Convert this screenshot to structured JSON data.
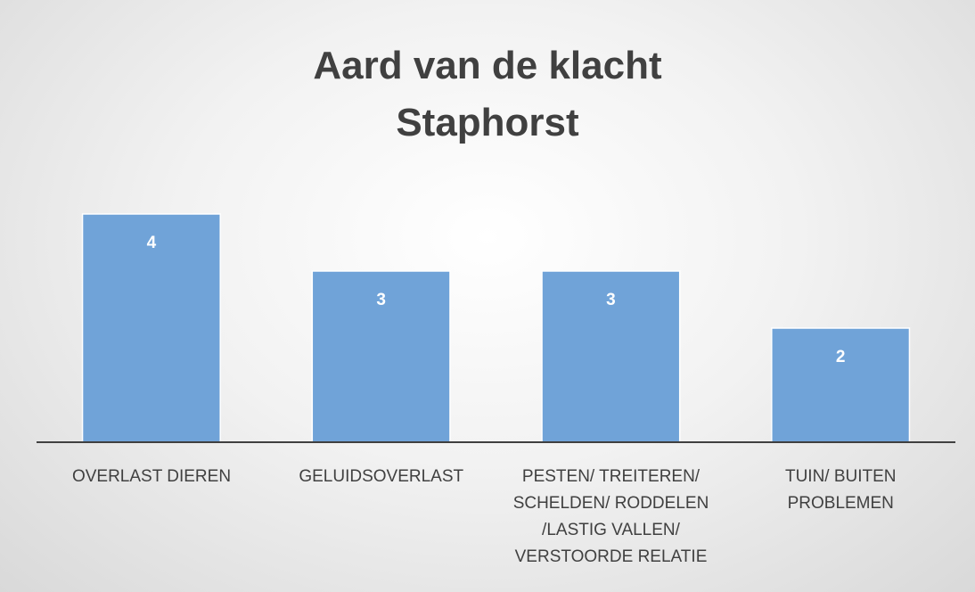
{
  "chart_data": {
    "type": "bar",
    "title": "Aard van de klacht\nStaphorst",
    "categories": [
      "OVERLAST DIEREN",
      "GELUIDSOVERLAST",
      "PESTEN/ TREITEREN/\nSCHELDEN/ RODDELEN\n/LASTIG VALLEN/\nVERSTOORDE RELATIE",
      "TUIN/ BUITEN\nPROBLEMEN"
    ],
    "values": [
      4,
      3,
      3,
      2
    ],
    "color": "#70a3d8",
    "ylim": [
      0,
      6
    ]
  }
}
